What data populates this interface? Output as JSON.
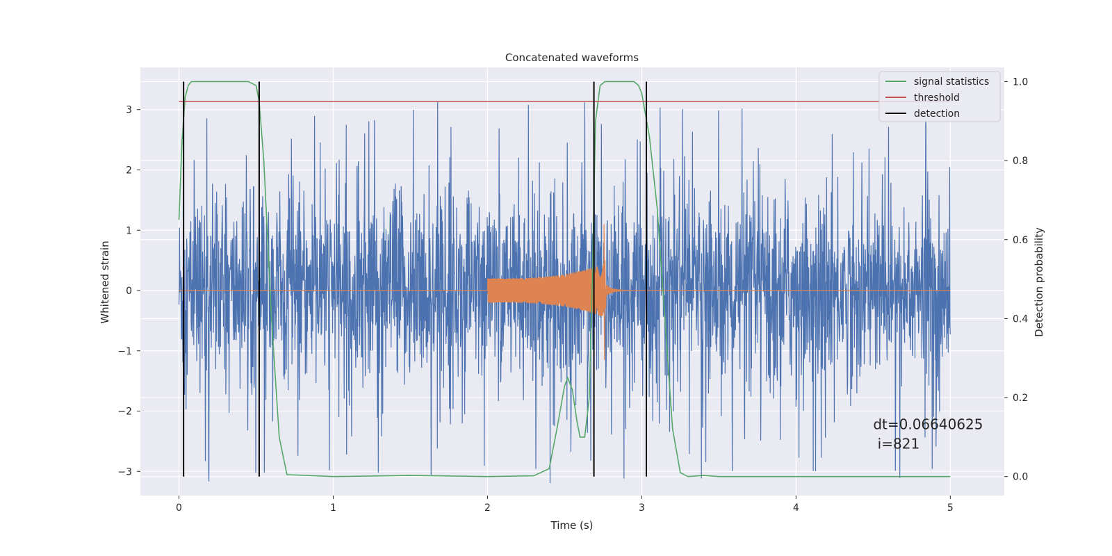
{
  "chart_data": {
    "type": "line",
    "title": "Concatenated waveforms",
    "xlabel": "Time (s)",
    "ylabel": "Whitened strain",
    "ylabel_right": "Detection probability",
    "xlim": [
      -0.25,
      5.35
    ],
    "ylim": [
      -3.4,
      3.7
    ],
    "ylim_right": [
      -0.048,
      1.036
    ],
    "x_ticks": [
      0,
      1,
      2,
      3,
      4,
      5
    ],
    "x_tick_labels": [
      "0",
      "1",
      "2",
      "3",
      "4",
      "5"
    ],
    "y_ticks": [
      -3,
      -2,
      -1,
      0,
      1,
      2,
      3
    ],
    "y_tick_labels": [
      "−3",
      "−2",
      "−1",
      "0",
      "1",
      "2",
      "3"
    ],
    "y_ticks_right": [
      0.0,
      0.2,
      0.4,
      0.6,
      0.8,
      1.0
    ],
    "y_tick_labels_right": [
      "0.0",
      "0.2",
      "0.4",
      "0.6",
      "0.8",
      "1.0"
    ],
    "grid": true,
    "legend_position": "top-right",
    "series": [
      {
        "name": "",
        "axis": "left",
        "kind": "noise",
        "color": "#4c72b0",
        "x_range": [
          0,
          5
        ],
        "typical_amplitude": 1.5,
        "peak_amplitude": 3.2
      },
      {
        "name": "",
        "axis": "left",
        "kind": "chirp",
        "color": "#dd8452",
        "x_range": [
          0,
          5
        ],
        "chirp_start": 2.0,
        "chirp_end": 2.76,
        "amplitude_at_start": 0.2,
        "peak_amplitude": 1.1,
        "peak_negative": -1.15
      },
      {
        "name": "signal statistics",
        "axis": "right",
        "color": "#55a868",
        "x": [
          0.0,
          0.02,
          0.04,
          0.06,
          0.08,
          0.1,
          0.45,
          0.5,
          0.52,
          0.55,
          0.6,
          0.65,
          0.7,
          1.0,
          1.5,
          2.0,
          2.3,
          2.4,
          2.45,
          2.5,
          2.52,
          2.55,
          2.58,
          2.6,
          2.63,
          2.66,
          2.68,
          2.7,
          2.73,
          2.76,
          2.8,
          2.95,
          2.98,
          3.0,
          3.05,
          3.1,
          3.15,
          3.2,
          3.25,
          3.3,
          3.4,
          3.5,
          4.0,
          5.0
        ],
        "y": [
          0.65,
          0.85,
          0.96,
          0.99,
          1.0,
          1.0,
          1.0,
          0.99,
          0.95,
          0.8,
          0.4,
          0.1,
          0.005,
          0.0,
          0.003,
          0.0,
          0.002,
          0.02,
          0.12,
          0.23,
          0.25,
          0.22,
          0.14,
          0.1,
          0.1,
          0.2,
          0.5,
          0.9,
          0.99,
          1.0,
          1.0,
          1.0,
          0.99,
          0.97,
          0.86,
          0.68,
          0.4,
          0.12,
          0.01,
          0.0,
          0.003,
          0.0,
          0.0,
          0.0
        ]
      },
      {
        "name": "threshold",
        "axis": "right",
        "color": "#c44e52",
        "x": [
          0,
          5
        ],
        "y": [
          0.95,
          0.95
        ]
      },
      {
        "name": "detection",
        "axis": "right",
        "kind": "vlines",
        "color": "#000000",
        "x": [
          0.03,
          0.52,
          2.69,
          3.03
        ],
        "y_range": [
          0.0,
          1.0
        ]
      }
    ],
    "annotation": {
      "line1": "dt=0.06640625",
      "line2": " i=821",
      "x": 4.5,
      "y": -2.3
    }
  }
}
